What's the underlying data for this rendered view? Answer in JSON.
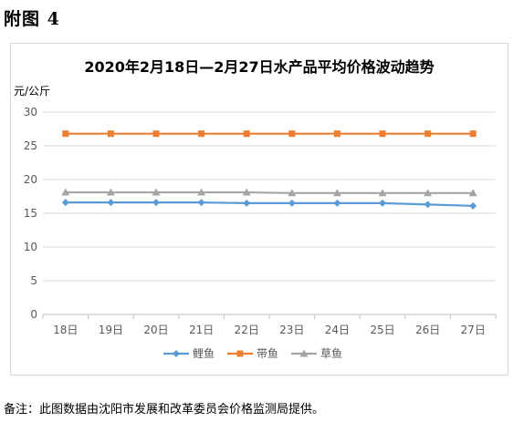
{
  "page": {
    "heading": "附图 4",
    "note": "备注：此图数据由沈阳市发展和改革委员会价格监测局提供。"
  },
  "chart_data": {
    "type": "line",
    "title": "2020年2月18日—2月27日水产品平均价格波动趋势",
    "ylabel": "元/公斤",
    "xlabel": "",
    "categories": [
      "18日",
      "19日",
      "20日",
      "21日",
      "22日",
      "23日",
      "24日",
      "25日",
      "26日",
      "27日"
    ],
    "ylim": [
      0,
      30
    ],
    "yticks": [
      0,
      5,
      10,
      15,
      20,
      25,
      30
    ],
    "grid": true,
    "legend_position": "bottom",
    "series": [
      {
        "name": "鲤鱼",
        "color": "#5b9bd5",
        "marker": "diamond",
        "values": [
          16.6,
          16.6,
          16.6,
          16.6,
          16.5,
          16.5,
          16.5,
          16.5,
          16.3,
          16.1
        ]
      },
      {
        "name": "带鱼",
        "color": "#ed7d31",
        "marker": "square",
        "values": [
          26.8,
          26.8,
          26.8,
          26.8,
          26.8,
          26.8,
          26.8,
          26.8,
          26.8,
          26.8
        ]
      },
      {
        "name": "草鱼",
        "color": "#a5a5a5",
        "marker": "triangle",
        "values": [
          18.1,
          18.1,
          18.1,
          18.1,
          18.1,
          18.0,
          18.0,
          18.0,
          18.0,
          18.0
        ]
      }
    ]
  }
}
